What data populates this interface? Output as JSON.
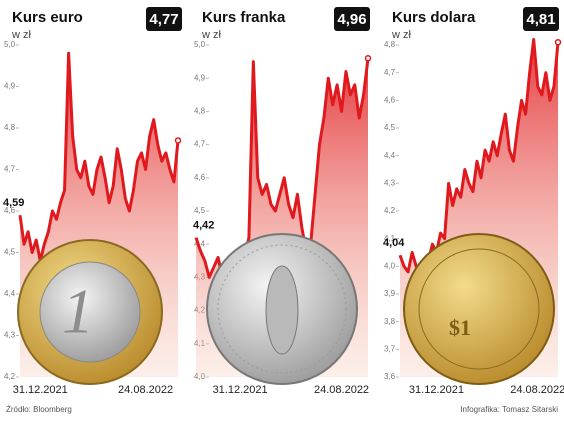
{
  "chart_data": [
    {
      "type": "line",
      "title": "Kurs euro",
      "subtitle": "w zł",
      "color": "#e0191e",
      "area": true,
      "categories": [
        null,
        null,
        null,
        null,
        null,
        "31.12.2021",
        null,
        null,
        null,
        null,
        null,
        null,
        null,
        null,
        null,
        null,
        null,
        null,
        null,
        null,
        null,
        null,
        null,
        null,
        null,
        null,
        null,
        null,
        null,
        null,
        null,
        "24.08.2022",
        null,
        null,
        null,
        null,
        null,
        null,
        null,
        null
      ],
      "values": [
        4.59,
        4.52,
        4.55,
        4.5,
        4.53,
        4.48,
        4.52,
        4.55,
        4.6,
        4.58,
        4.62,
        4.65,
        4.98,
        4.78,
        4.7,
        4.68,
        4.72,
        4.66,
        4.64,
        4.7,
        4.73,
        4.68,
        4.62,
        4.66,
        4.75,
        4.7,
        4.63,
        4.6,
        4.65,
        4.72,
        4.74,
        4.7,
        4.78,
        4.82,
        4.76,
        4.72,
        4.74,
        4.7,
        4.67,
        4.77
      ],
      "value_labels": [
        "4,59",
        null,
        null,
        null,
        null,
        null,
        null,
        null,
        null,
        null,
        null,
        null,
        null,
        null,
        null,
        null,
        null,
        null,
        null,
        null,
        null,
        null,
        null,
        null,
        null,
        null,
        null,
        null,
        null,
        null,
        null,
        null,
        null,
        null,
        null,
        null,
        null,
        null,
        null,
        "4,77"
      ],
      "ylim": [
        4.2,
        5.0
      ],
      "yticks": [
        {
          "value": 4.2,
          "label": "4,2"
        },
        {
          "value": 4.3,
          "label": "4,3"
        },
        {
          "value": 4.4,
          "label": "4,4"
        },
        {
          "value": 4.5,
          "label": "4,5"
        },
        {
          "value": 4.6,
          "label": "4,6"
        },
        {
          "value": 4.7,
          "label": "4,7"
        },
        {
          "value": 4.8,
          "label": "4,8"
        },
        {
          "value": 4.9,
          "label": "4,9"
        },
        {
          "value": 5.0,
          "label": "5,0"
        }
      ]
    },
    {
      "type": "line",
      "title": "Kurs franka",
      "subtitle": "w zł",
      "color": "#e0191e",
      "area": true,
      "categories": [
        null,
        null,
        null,
        null,
        null,
        null,
        null,
        null,
        null,
        null,
        "31.12.2021",
        null,
        null,
        null,
        null,
        null,
        null,
        null,
        null,
        null,
        null,
        null,
        null,
        null,
        null,
        null,
        null,
        null,
        null,
        null,
        null,
        null,
        null,
        "24.08.2022",
        null,
        null,
        null,
        null,
        null,
        null
      ],
      "values": [
        4.42,
        4.38,
        4.35,
        4.3,
        4.33,
        4.36,
        4.3,
        4.34,
        4.27,
        4.33,
        4.3,
        4.36,
        4.42,
        4.95,
        4.6,
        4.55,
        4.58,
        4.52,
        4.5,
        4.55,
        4.6,
        4.52,
        4.48,
        4.55,
        4.45,
        4.38,
        4.4,
        4.55,
        4.7,
        4.78,
        4.9,
        4.82,
        4.88,
        4.8,
        4.92,
        4.85,
        4.88,
        4.78,
        4.85,
        4.96
      ],
      "value_labels": [
        "4,42",
        null,
        null,
        null,
        null,
        null,
        null,
        null,
        null,
        null,
        null,
        null,
        null,
        null,
        null,
        null,
        null,
        null,
        null,
        null,
        null,
        null,
        null,
        null,
        null,
        null,
        null,
        null,
        null,
        null,
        null,
        null,
        null,
        null,
        null,
        null,
        null,
        null,
        null,
        "4,96"
      ],
      "ylim": [
        4.0,
        5.0
      ],
      "yticks": [
        {
          "value": 4.0,
          "label": "4,0"
        },
        {
          "value": 4.1,
          "label": "4,1"
        },
        {
          "value": 4.2,
          "label": "4,2"
        },
        {
          "value": 4.3,
          "label": "4,3"
        },
        {
          "value": 4.4,
          "label": "4,4"
        },
        {
          "value": 4.5,
          "label": "4,5"
        },
        {
          "value": 4.6,
          "label": "4,6"
        },
        {
          "value": 4.7,
          "label": "4,7"
        },
        {
          "value": 4.8,
          "label": "4,8"
        },
        {
          "value": 4.9,
          "label": "4,9"
        },
        {
          "value": 5.0,
          "label": "5,0"
        }
      ]
    },
    {
      "type": "line",
      "title": "Kurs dolara",
      "subtitle": "w zł",
      "color": "#e0191e",
      "area": true,
      "categories": [
        null,
        null,
        null,
        null,
        null,
        null,
        null,
        null,
        null,
        "31.12.2021",
        null,
        null,
        null,
        null,
        null,
        null,
        null,
        null,
        null,
        null,
        null,
        null,
        null,
        null,
        null,
        null,
        null,
        null,
        null,
        null,
        null,
        null,
        null,
        null,
        "24.08.2022",
        null,
        null,
        null,
        null,
        null
      ],
      "values": [
        4.04,
        4.0,
        3.98,
        4.05,
        4.0,
        3.95,
        3.92,
        4.02,
        4.08,
        4.05,
        4.12,
        4.1,
        4.3,
        4.22,
        4.28,
        4.25,
        4.35,
        4.3,
        4.27,
        4.38,
        4.32,
        4.42,
        4.38,
        4.45,
        4.4,
        4.48,
        4.55,
        4.42,
        4.38,
        4.5,
        4.6,
        4.55,
        4.7,
        4.82,
        4.65,
        4.62,
        4.7,
        4.6,
        4.65,
        4.81
      ],
      "value_labels": [
        "4,04",
        null,
        null,
        null,
        null,
        null,
        null,
        null,
        null,
        null,
        null,
        null,
        null,
        null,
        null,
        null,
        null,
        null,
        null,
        null,
        null,
        null,
        null,
        null,
        null,
        null,
        null,
        null,
        null,
        null,
        null,
        null,
        null,
        null,
        null,
        null,
        null,
        null,
        null,
        "4,81"
      ],
      "ylim": [
        3.6,
        4.8
      ],
      "yticks": [
        {
          "value": 3.6,
          "label": "3,6"
        },
        {
          "value": 3.7,
          "label": "3,7"
        },
        {
          "value": 3.8,
          "label": "3,8"
        },
        {
          "value": 3.9,
          "label": "3,9"
        },
        {
          "value": 4.0,
          "label": "4,0"
        },
        {
          "value": 4.1,
          "label": "4,1"
        },
        {
          "value": 4.2,
          "label": "4,2"
        },
        {
          "value": 4.3,
          "label": "4,3"
        },
        {
          "value": 4.4,
          "label": "4,4"
        },
        {
          "value": 4.5,
          "label": "4,5"
        },
        {
          "value": 4.6,
          "label": "4,6"
        },
        {
          "value": 4.7,
          "label": "4,7"
        },
        {
          "value": 4.8,
          "label": "4,8"
        }
      ]
    }
  ],
  "footer": {
    "source": "Źródło: Bloomberg",
    "credit": "Infografika: Tomasz Sitarski"
  }
}
